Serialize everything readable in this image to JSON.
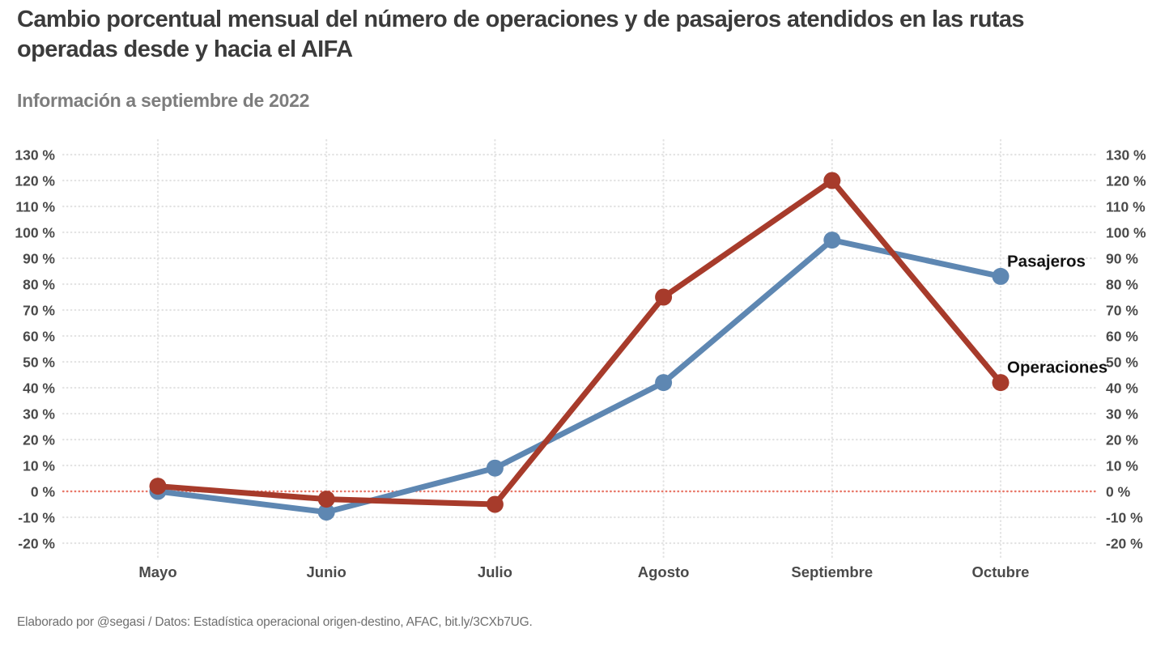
{
  "colors": {
    "background": "#ffffff",
    "title_text": "#3b3b3b",
    "subtitle_text": "#7d7d7d",
    "axis_text": "#4a4a4a",
    "caption_text": "#6f6f6f",
    "series_label_text": "#111111",
    "gridline": "#e3e3e3",
    "zero_line": "#e87869",
    "operaciones": "#a73b2b",
    "pasajeros": "#5e87b2"
  },
  "chart_data": {
    "type": "line",
    "title": "Cambio porcentual mensual del número de operaciones y de pasajeros atendidos en las rutas operadas desde y hacia el AIFA",
    "subtitle": "Información a septiembre de 2022",
    "caption": "Elaborado por @segasi / Datos: Estadística operacional origen-destino, AFAC, bit.ly/3CXb7UG.",
    "categories": [
      "Mayo",
      "Junio",
      "Julio",
      "Agosto",
      "Septiembre",
      "Octubre"
    ],
    "series": [
      {
        "name": "Pasajeros",
        "color": "#5e87b2",
        "values": [
          0,
          -8,
          9,
          42,
          97,
          83
        ]
      },
      {
        "name": "Operaciones",
        "color": "#a73b2b",
        "values": [
          2,
          -3,
          -5,
          75,
          120,
          42
        ]
      }
    ],
    "y_ticks": [
      -20,
      -10,
      0,
      10,
      20,
      30,
      40,
      50,
      60,
      70,
      80,
      90,
      100,
      110,
      120,
      130
    ],
    "y_tick_labels": [
      "-20 %",
      "-10 %",
      "0 %",
      "10 %",
      "20 %",
      "30 %",
      "40 %",
      "50 %",
      "60 %",
      "70 %",
      "80 %",
      "90 %",
      "100 %",
      "110 %",
      "120 %",
      "130 %"
    ],
    "ylim": [
      -25,
      135
    ],
    "xlabel": "",
    "ylabel": "",
    "grid": "dotted",
    "zero_line": true,
    "axis_sides": [
      "left",
      "right"
    ],
    "legend_position": "series-end-labels"
  }
}
